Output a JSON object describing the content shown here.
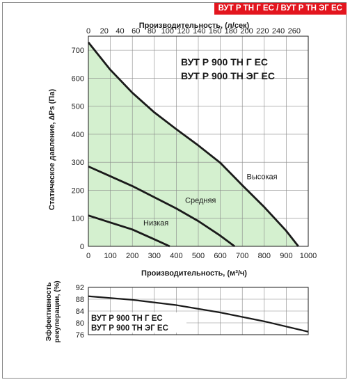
{
  "banner": "ВУТ Р ТН Г ЕС / ВУТ Р ТН ЭГ ЕС",
  "colors": {
    "fill": "#d4f0cf",
    "line": "#1a1a1a",
    "grid": "#888888",
    "banner": "#e3151e"
  },
  "chart_data": [
    {
      "type": "line",
      "title_lines": [
        "ВУТ Р 900 ТН Г ЕС",
        "ВУТ Р 900 ТН ЭГ ЕС"
      ],
      "xlabel": "Производительность, (м³/ч)",
      "x2label": "Производительность, (л/сек)",
      "ylabel": "Статическое давление, ∆Ps (Па)",
      "xlim": [
        0,
        1000
      ],
      "x2lim": [
        0,
        277.78
      ],
      "ylim": [
        0,
        750
      ],
      "xticks": [
        0,
        100,
        200,
        300,
        400,
        500,
        600,
        700,
        800,
        900,
        1000
      ],
      "x2ticks": [
        0,
        20,
        40,
        60,
        80,
        100,
        120,
        140,
        160,
        180,
        200,
        220,
        240,
        260
      ],
      "yticks": [
        0,
        100,
        200,
        300,
        400,
        500,
        600,
        700
      ],
      "grid": true,
      "shaded_area": "under Высокая curve",
      "series": [
        {
          "name": "Высокая",
          "x": [
            0,
            100,
            200,
            300,
            400,
            500,
            600,
            700,
            800,
            900,
            955
          ],
          "y": [
            728,
            630,
            548,
            478,
            418,
            360,
            298,
            218,
            140,
            55,
            0
          ]
        },
        {
          "name": "Средняя",
          "x": [
            0,
            100,
            200,
            300,
            400,
            500,
            600,
            665
          ],
          "y": [
            285,
            250,
            215,
            175,
            135,
            90,
            38,
            0
          ]
        },
        {
          "name": "Низкая",
          "x": [
            0,
            100,
            200,
            300,
            370
          ],
          "y": [
            110,
            85,
            60,
            25,
            0
          ]
        }
      ]
    },
    {
      "type": "line",
      "ylabel_lines": [
        "Эффективность",
        "рекуперации, (%)"
      ],
      "title_lines": [
        "ВУТ Р 900 ТН Г ЕС",
        "ВУТ Р 900 ТН ЭГ ЕС"
      ],
      "xlim": [
        0,
        1000
      ],
      "ylim": [
        76,
        92
      ],
      "yticks": [
        76,
        80,
        84,
        88,
        92
      ],
      "grid": true,
      "series": [
        {
          "x": [
            0,
            200,
            400,
            600,
            800,
            1000
          ],
          "y": [
            89,
            87.8,
            86,
            83.5,
            80.5,
            77
          ]
        }
      ]
    }
  ]
}
